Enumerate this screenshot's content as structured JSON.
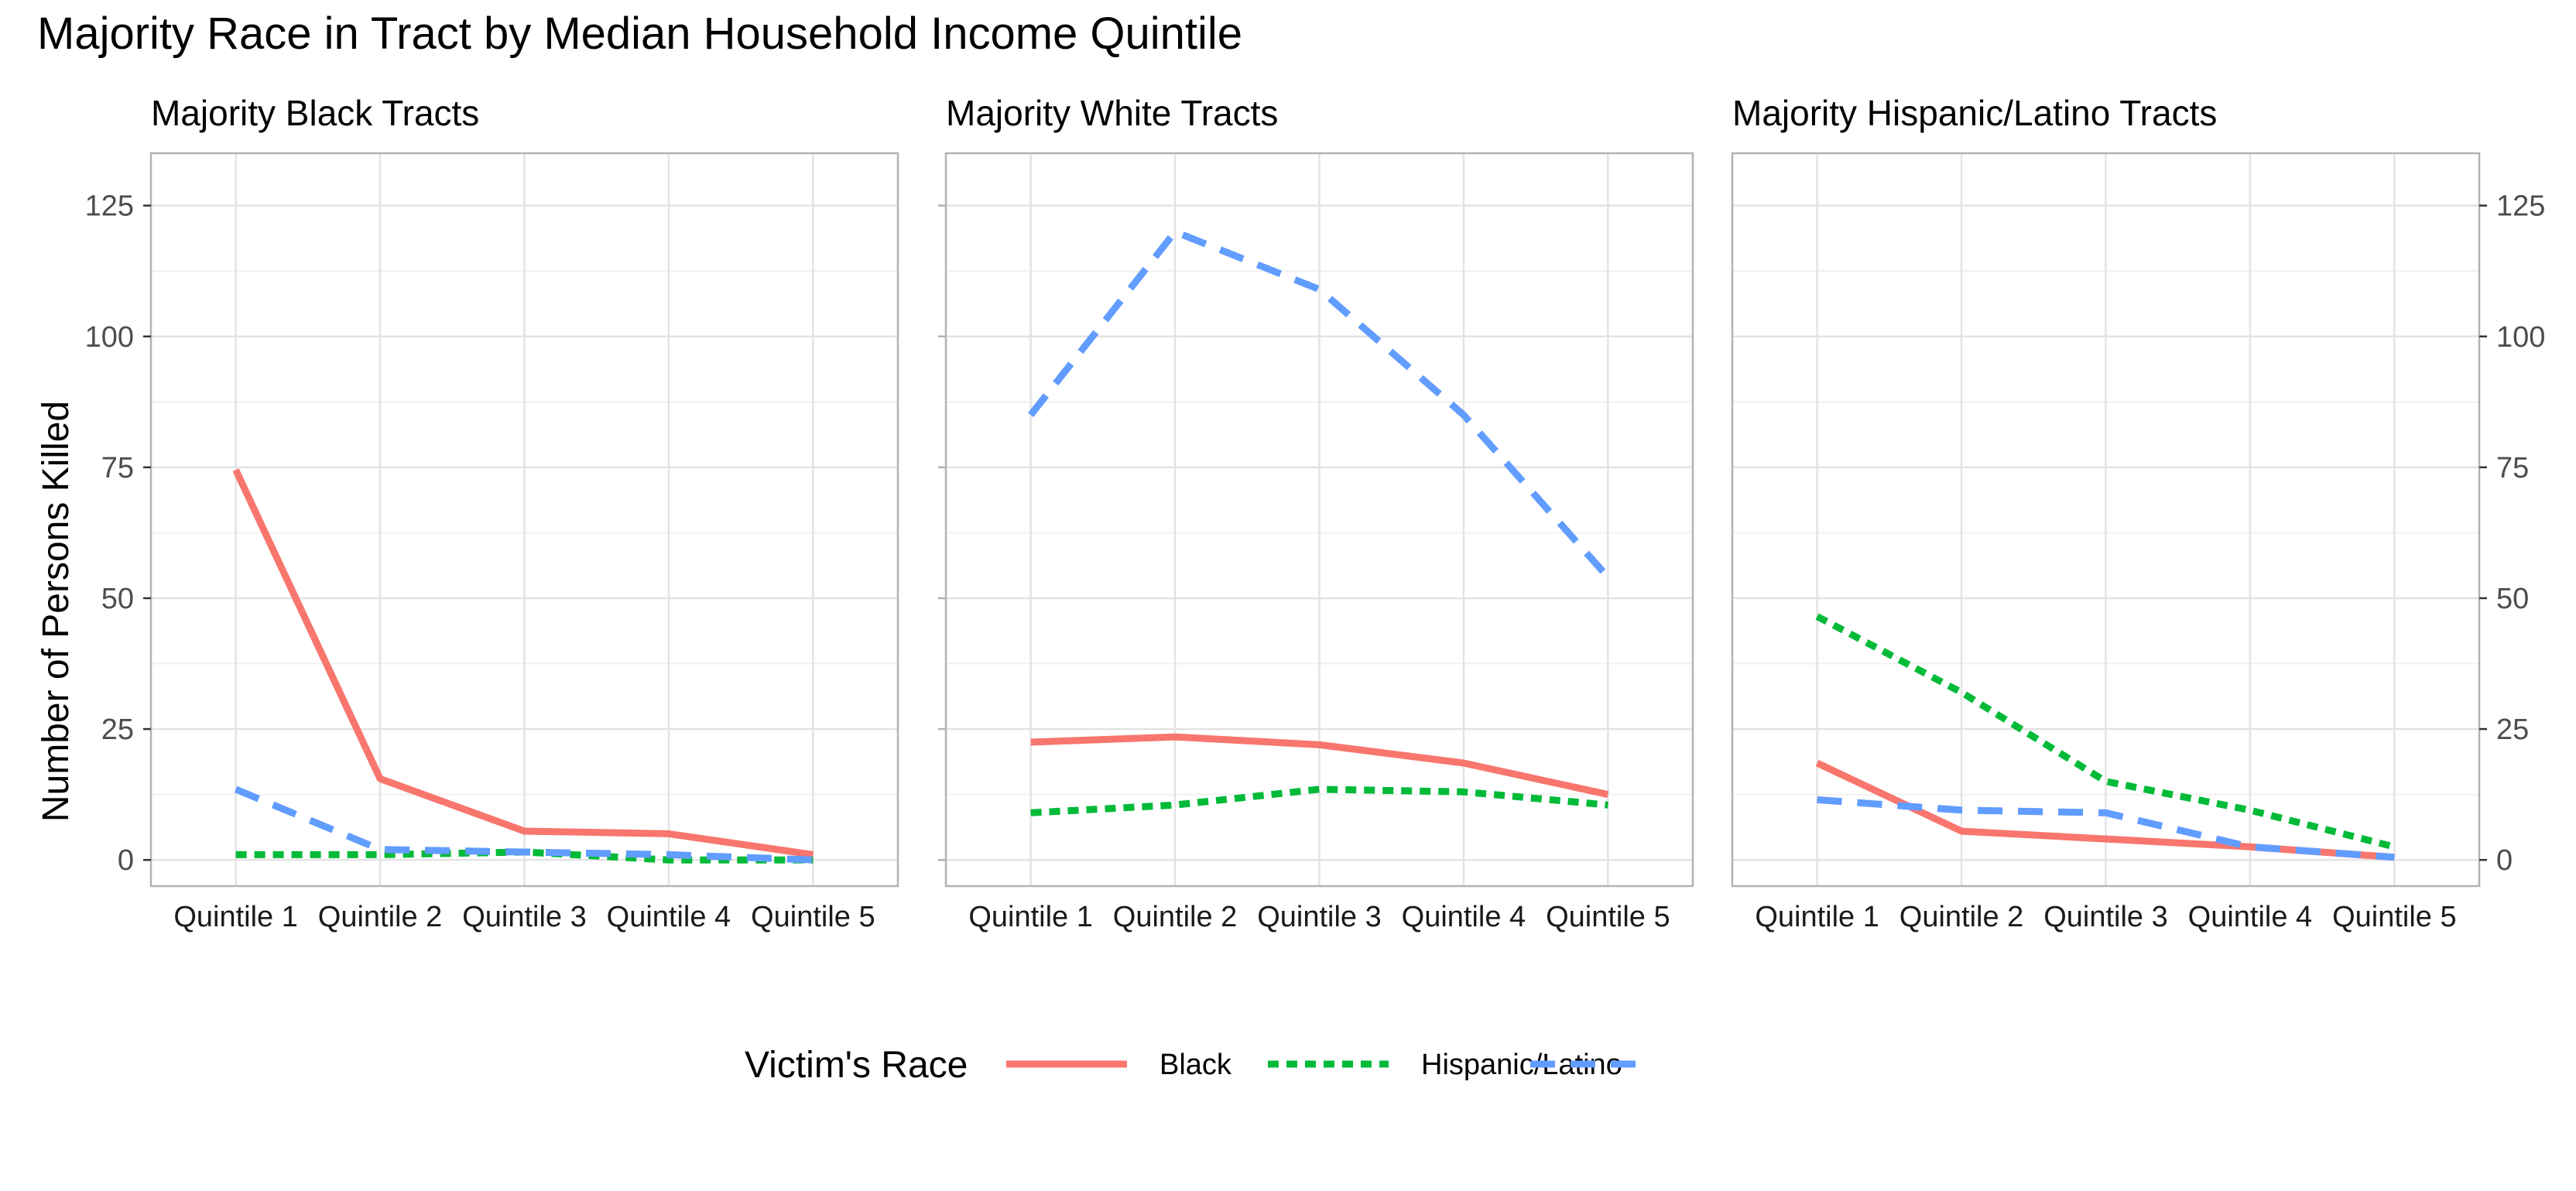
{
  "chart_data": {
    "type": "line",
    "title": "Majority Race in Tract by Median Household Income Quintile",
    "ylabel": "Number of Persons Killed",
    "ylim": [
      -5,
      135
    ],
    "y_ticks": [
      0,
      25,
      50,
      75,
      100,
      125
    ],
    "categories": [
      "Quintile 1",
      "Quintile 2",
      "Quintile 3",
      "Quintile 4",
      "Quintile 5"
    ],
    "grid": true,
    "legend": {
      "title": "Victim's Race",
      "placement": "bottom",
      "entries": [
        {
          "name": "Black",
          "color": "#F8766D",
          "dash": "solid"
        },
        {
          "name": "Hispanic/Latino",
          "color": "#00BA38",
          "dash": "dotted"
        },
        {
          "name": "",
          "color": "#619CFF",
          "dash": "dashed"
        }
      ]
    },
    "panels": [
      {
        "title": "Majority Black Tracts",
        "series": [
          {
            "name": "Black",
            "values": [
              74.5,
              15.5,
              5.5,
              5,
              1
            ]
          },
          {
            "name": "Hispanic/Latino",
            "values": [
              1,
              1,
              1.5,
              0,
              0
            ]
          },
          {
            "series_index": 2,
            "values": [
              13.5,
              2,
              1.5,
              1,
              0
            ]
          }
        ]
      },
      {
        "title": "Majority White Tracts",
        "series": [
          {
            "name": "Black",
            "values": [
              22.5,
              23.5,
              22,
              18.5,
              12.5
            ]
          },
          {
            "name": "Hispanic/Latino",
            "values": [
              9,
              10.5,
              13.5,
              13,
              10.5
            ]
          },
          {
            "series_index": 2,
            "values": [
              85,
              120,
              109,
              85,
              54
            ]
          }
        ]
      },
      {
        "title": "Majority Hispanic/Latino Tracts",
        "series": [
          {
            "name": "Black",
            "values": [
              18.5,
              5.5,
              4,
              2.5,
              0.5
            ]
          },
          {
            "name": "Hispanic/Latino",
            "values": [
              46.5,
              32,
              15,
              9.5,
              2.5
            ]
          },
          {
            "series_index": 2,
            "values": [
              11.5,
              9.5,
              9,
              2.5,
              0.5
            ]
          }
        ]
      }
    ]
  }
}
